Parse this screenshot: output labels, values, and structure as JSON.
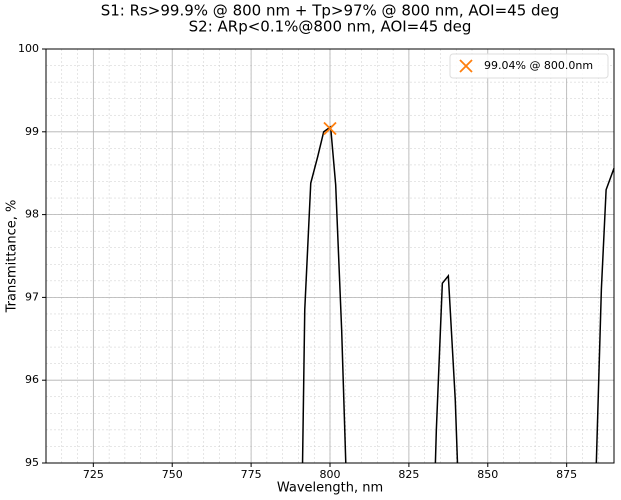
{
  "chart_data": {
    "type": "line",
    "title": [
      "S1: Rs>99.9% @ 800 nm + Tp>97% @ 800 nm, AOI=45 deg",
      "S2: ARp<0.1%@800 nm, AOI=45 deg"
    ],
    "xlabel": "Wavelength, nm",
    "ylabel": "Transmittance, %",
    "xlim": [
      710,
      890
    ],
    "ylim": [
      95,
      100
    ],
    "xticks": [
      725,
      750,
      775,
      800,
      825,
      850,
      875
    ],
    "yticks": [
      95,
      96,
      97,
      98,
      99,
      100
    ],
    "grid": true,
    "minor_grid": true,
    "series": [
      {
        "color": "#000000",
        "x": [
          791.3,
          792,
          793.9,
          796.1,
          798,
          800.2,
          801.8,
          803.7,
          805,
          null,
          833.4,
          833.7,
          835.6,
          837.5,
          839.7,
          840.4,
          null,
          884.4,
          886,
          887.5,
          890
        ],
        "values": [
          95,
          96.85,
          98.38,
          98.7,
          99.0,
          99.06,
          98.36,
          96.6,
          95,
          null,
          95,
          95.4,
          97.17,
          97.26,
          95.76,
          95,
          null,
          95,
          97.1,
          98.3,
          98.56
        ]
      },
      {
        "name": "99.04% @ 800.0nm",
        "color": "#ff7f0e",
        "marker": "x",
        "x": [
          800
        ],
        "values": [
          99.04
        ]
      }
    ],
    "legend": "upper right"
  }
}
